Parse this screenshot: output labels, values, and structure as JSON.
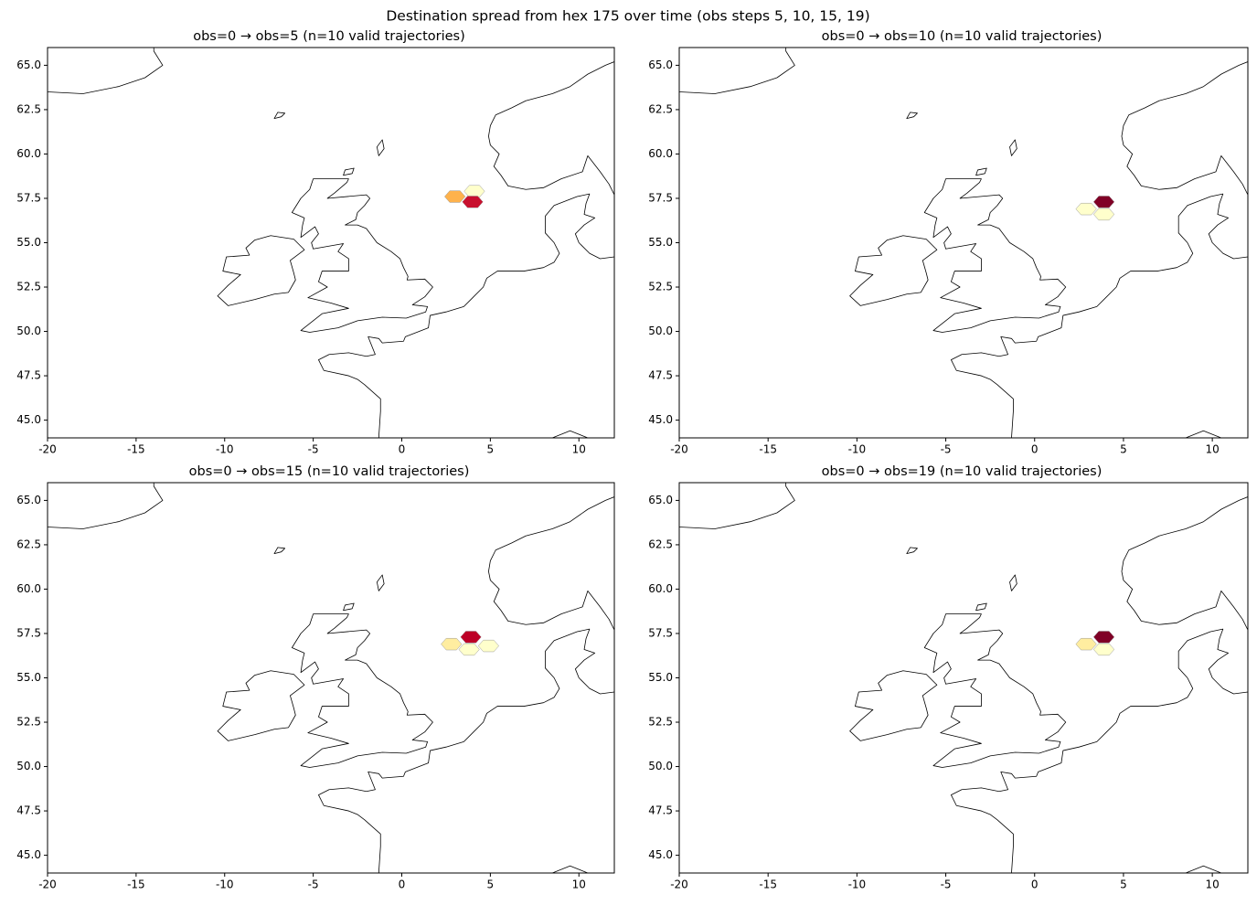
{
  "title": "Destination spread from hex 175 over time (obs steps 5, 10, 15, 19)",
  "chart_data": [
    {
      "type": "hexmap",
      "title": "obs=0 → obs=5  (n=10 valid trajectories)",
      "xlim": [
        -20,
        12
      ],
      "ylim": [
        44,
        66
      ],
      "xticks": [
        -20,
        -15,
        -10,
        -5,
        0,
        5,
        10
      ],
      "yticks": [
        {
          "value": 45,
          "label": "45.0"
        },
        47.5,
        {
          "value": 50,
          "label": "50.0"
        },
        52.5,
        {
          "value": 55,
          "label": "55.0"
        },
        57.5,
        {
          "value": 60,
          "label": "60.0"
        },
        62.5,
        {
          "value": 65,
          "label": "65.0"
        }
      ],
      "hexes": {
        "lon": [
          3.0,
          4.1,
          4.0
        ],
        "lat": [
          57.6,
          57.9,
          57.3
        ],
        "color": [
          "#feb24c",
          "#ffffcc",
          "#c8102e"
        ]
      }
    },
    {
      "type": "hexmap",
      "title": "obs=0 → obs=10  (n=10 valid trajectories)",
      "xlim": [
        -20,
        12
      ],
      "ylim": [
        44,
        66
      ],
      "xticks": [
        -20,
        -15,
        -10,
        -5,
        0,
        5,
        10
      ],
      "yticks": [
        {
          "value": 45,
          "label": "45.0"
        },
        47.5,
        {
          "value": 50,
          "label": "50.0"
        },
        52.5,
        {
          "value": 55,
          "label": "55.0"
        },
        57.5,
        {
          "value": 60,
          "label": "60.0"
        },
        62.5,
        {
          "value": 65,
          "label": "65.0"
        }
      ],
      "hexes": {
        "lon": [
          3.9,
          2.9,
          3.9
        ],
        "lat": [
          57.3,
          56.9,
          56.6
        ],
        "color": [
          "#800026",
          "#ffffcc",
          "#ffffcc"
        ]
      }
    },
    {
      "type": "hexmap",
      "title": "obs=0 → obs=15  (n=10 valid trajectories)",
      "xlim": [
        -20,
        12
      ],
      "ylim": [
        44,
        66
      ],
      "xticks": [
        -20,
        -15,
        -10,
        -5,
        0,
        5,
        10
      ],
      "yticks": [
        {
          "value": 45,
          "label": "45.0"
        },
        47.5,
        {
          "value": 50,
          "label": "50.0"
        },
        52.5,
        {
          "value": 55,
          "label": "55.0"
        },
        57.5,
        {
          "value": 60,
          "label": "60.0"
        },
        62.5,
        {
          "value": 65,
          "label": "65.0"
        }
      ],
      "hexes": {
        "lon": [
          3.9,
          2.8,
          3.8,
          4.9
        ],
        "lat": [
          57.3,
          56.9,
          56.6,
          56.8
        ],
        "color": [
          "#bd0026",
          "#ffeda0",
          "#ffffcc",
          "#ffffcc"
        ]
      }
    },
    {
      "type": "hexmap",
      "title": "obs=0 → obs=19  (n=10 valid trajectories)",
      "xlim": [
        -20,
        12
      ],
      "ylim": [
        44,
        66
      ],
      "xticks": [
        -20,
        -15,
        -10,
        -5,
        0,
        5,
        10
      ],
      "yticks": [
        {
          "value": 45,
          "label": "45.0"
        },
        47.5,
        {
          "value": 50,
          "label": "50.0"
        },
        52.5,
        {
          "value": 55,
          "label": "55.0"
        },
        57.5,
        {
          "value": 60,
          "label": "60.0"
        },
        62.5,
        {
          "value": 65,
          "label": "65.0"
        }
      ],
      "hexes": {
        "lon": [
          3.9,
          2.9,
          3.9
        ],
        "lat": [
          57.3,
          56.9,
          56.6
        ],
        "color": [
          "#800026",
          "#ffeda0",
          "#ffffcc"
        ]
      }
    }
  ]
}
